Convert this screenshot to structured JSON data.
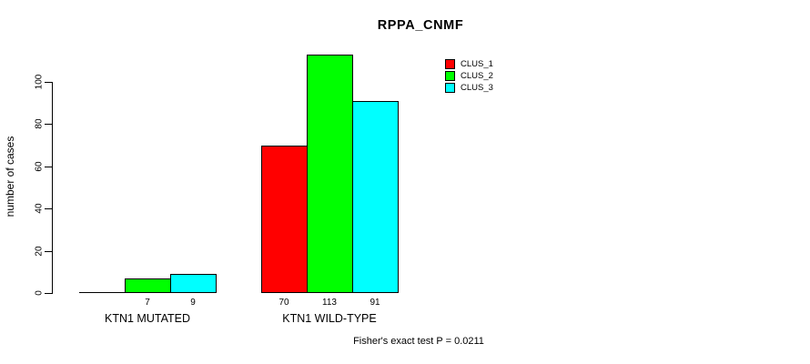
{
  "chart_data": {
    "type": "bar",
    "title": "RPPA_CNMF",
    "ylabel": "number of cases",
    "xlabel": "",
    "ylim": [
      0,
      116
    ],
    "yticks": [
      0,
      20,
      40,
      60,
      80,
      100
    ],
    "grid": false,
    "legend_position": "top-right",
    "categories": [
      "KTN1 MUTATED",
      "KTN1 WILD-TYPE"
    ],
    "series": [
      {
        "name": "CLUS_1",
        "color": "#ff0000",
        "values": [
          0,
          70
        ]
      },
      {
        "name": "CLUS_2",
        "color": "#00ff00",
        "values": [
          7,
          113
        ]
      },
      {
        "name": "CLUS_3",
        "color": "#00ffff",
        "values": [
          9,
          91
        ]
      }
    ],
    "bar_value_labels": [
      [
        "",
        "7",
        "9"
      ],
      [
        "70",
        "113",
        "91"
      ]
    ],
    "annotation": "Fisher's exact test P = 0.0211"
  }
}
